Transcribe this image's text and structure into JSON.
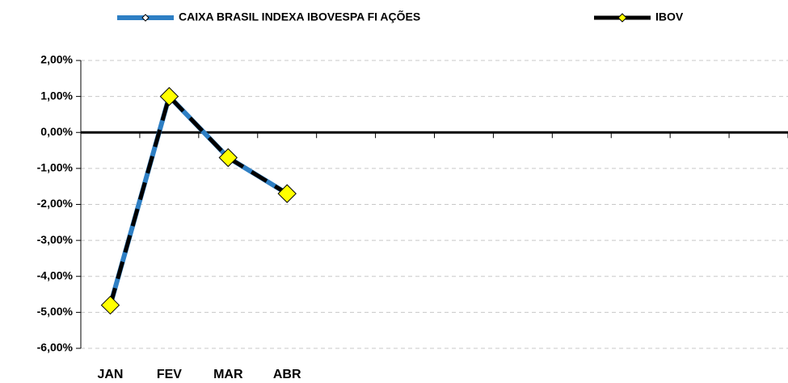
{
  "chart_data": {
    "type": "line",
    "categories": [
      "JAN",
      "FEV",
      "MAR",
      "ABR",
      null,
      null,
      null,
      null,
      null,
      null,
      null,
      null
    ],
    "series": [
      {
        "name": "CAIXA BRASIL INDEXA IBOVESPA FI AÇÕES",
        "color": "#2e7fc4",
        "values": [
          -4.8,
          1.0,
          -0.7,
          -1.7,
          null,
          null,
          null,
          null,
          null,
          null,
          null,
          null
        ]
      },
      {
        "name": "IBOV",
        "color": "#000000",
        "marker_color": "#ffff00",
        "values": [
          -4.8,
          1.0,
          -0.7,
          -1.7,
          null,
          null,
          null,
          null,
          null,
          null,
          null,
          null
        ]
      }
    ],
    "ylim": [
      -6,
      2
    ],
    "yticks": [
      {
        "value": -6,
        "label": "-6,00%"
      },
      {
        "value": -5,
        "label": "-5,00%"
      },
      {
        "value": -4,
        "label": "-4,00%"
      },
      {
        "value": -3,
        "label": "-3,00%"
      },
      {
        "value": -2,
        "label": "-2,00%"
      },
      {
        "value": -1,
        "label": "-1,00%"
      },
      {
        "value": 0,
        "label": "0,00%"
      },
      {
        "value": 1,
        "label": "1,00%"
      },
      {
        "value": 2,
        "label": "2,00%"
      }
    ],
    "grid": true,
    "legend": "top"
  }
}
